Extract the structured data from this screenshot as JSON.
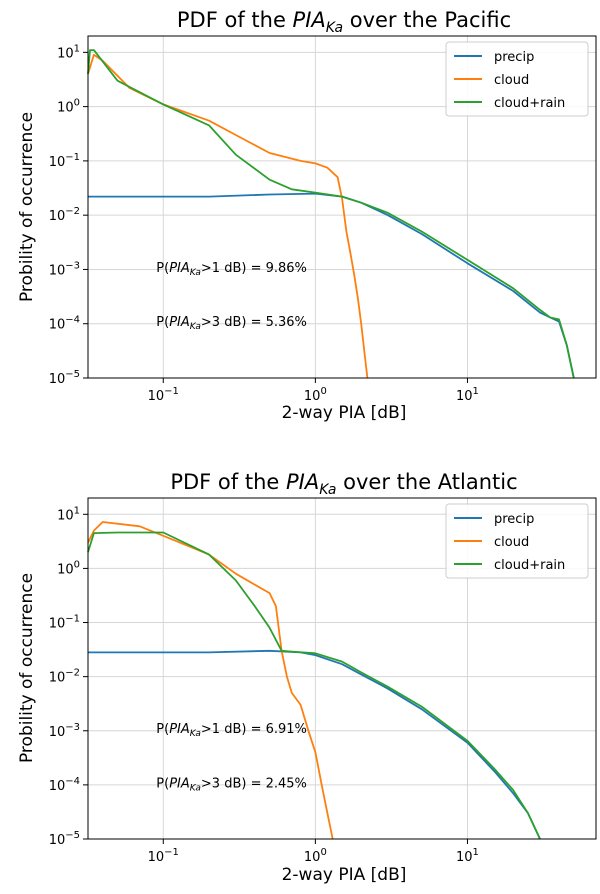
{
  "colors": {
    "precip": "#1f77b4",
    "cloud": "#ff7f0e",
    "cloud_rain": "#2ca02c",
    "grid": "#d6d6d6",
    "axes": "#000000"
  },
  "chart_data": [
    {
      "type": "line",
      "title": "PDF of the PIA_Ka over the Pacific",
      "title_parts": {
        "prefix": "PDF of the ",
        "pia": "PIA",
        "sub": "Ka",
        "suffix": " over the Pacific"
      },
      "xlabel": "2-way PIA [dB]",
      "ylabel": "Probility of occurrence",
      "xscale": "log",
      "yscale": "log",
      "xlim": [
        0.032,
        70
      ],
      "ylim": [
        1e-05,
        20
      ],
      "grid": true,
      "legend_position": "top-right",
      "xticks": [
        {
          "value": 0.1,
          "base": "10",
          "exp": "−1"
        },
        {
          "value": 1,
          "base": "10",
          "exp": "0"
        },
        {
          "value": 10,
          "base": "10",
          "exp": "1"
        }
      ],
      "yticks": [
        {
          "value": 1e-05,
          "base": "10",
          "exp": "−5"
        },
        {
          "value": 0.0001,
          "base": "10",
          "exp": "−4"
        },
        {
          "value": 0.001,
          "base": "10",
          "exp": "−3"
        },
        {
          "value": 0.01,
          "base": "10",
          "exp": "−2"
        },
        {
          "value": 0.1,
          "base": "10",
          "exp": "−1"
        },
        {
          "value": 1,
          "base": "10",
          "exp": "0"
        },
        {
          "value": 10,
          "base": "10",
          "exp": "1"
        }
      ],
      "annotations": [
        {
          "x": 0.09,
          "y": 0.0009,
          "prefix": "P(",
          "pia": "PIA",
          "sub": "Ka",
          "suffix": ">1 dB) = 9.86%"
        },
        {
          "x": 0.09,
          "y": 9e-05,
          "prefix": "P(",
          "pia": "PIA",
          "sub": "Ka",
          "suffix": ">3 dB) = 5.36%"
        }
      ],
      "series": [
        {
          "name": "precip",
          "key": "precip",
          "x": [
            0.032,
            0.05,
            0.1,
            0.2,
            0.5,
            1.0,
            1.5,
            2.0,
            3.0,
            5.0,
            10.0,
            20.0,
            30.0,
            35.0,
            40.0,
            45.0,
            50.0
          ],
          "y": [
            0.022,
            0.022,
            0.022,
            0.022,
            0.024,
            0.025,
            0.022,
            0.017,
            0.01,
            0.0045,
            0.0013,
            0.0004,
            0.00016,
            0.00013,
            0.00011,
            4e-05,
            1e-05
          ]
        },
        {
          "name": "cloud",
          "key": "cloud",
          "x": [
            0.032,
            0.035,
            0.04,
            0.06,
            0.1,
            0.2,
            0.3,
            0.5,
            0.8,
            1.0,
            1.2,
            1.4,
            1.5,
            1.6,
            1.7,
            1.8,
            1.9,
            2.0,
            2.1,
            2.2
          ],
          "y": [
            4,
            9,
            7,
            2.2,
            1.1,
            0.55,
            0.3,
            0.14,
            0.1,
            0.09,
            0.075,
            0.05,
            0.02,
            0.005,
            0.002,
            0.0008,
            0.0003,
            0.0001,
            3e-05,
            1e-05
          ]
        },
        {
          "name": "cloud+rain",
          "key": "cloud_rain",
          "x": [
            0.032,
            0.033,
            0.035,
            0.05,
            0.1,
            0.2,
            0.3,
            0.5,
            0.7,
            1.0,
            1.5,
            2.0,
            3.0,
            5.0,
            10.0,
            20.0,
            30.0,
            35.0,
            40.0,
            45.0,
            50.0
          ],
          "y": [
            4,
            11,
            11,
            3,
            1.1,
            0.45,
            0.13,
            0.045,
            0.03,
            0.026,
            0.022,
            0.017,
            0.011,
            0.005,
            0.0015,
            0.00045,
            0.00018,
            0.00013,
            0.00012,
            4e-05,
            1e-05
          ]
        }
      ]
    },
    {
      "type": "line",
      "title": "PDF of the PIA_Ka over the Atlantic",
      "title_parts": {
        "prefix": "PDF of the ",
        "pia": "PIA",
        "sub": "Ka",
        "suffix": " over the Atlantic"
      },
      "xlabel": "2-way PIA [dB]",
      "ylabel": "Probility of occurrence",
      "xscale": "log",
      "yscale": "log",
      "xlim": [
        0.032,
        70
      ],
      "ylim": [
        1e-05,
        20
      ],
      "grid": true,
      "legend_position": "top-right",
      "xticks": [
        {
          "value": 0.1,
          "base": "10",
          "exp": "−1"
        },
        {
          "value": 1,
          "base": "10",
          "exp": "0"
        },
        {
          "value": 10,
          "base": "10",
          "exp": "1"
        }
      ],
      "yticks": [
        {
          "value": 1e-05,
          "base": "10",
          "exp": "−5"
        },
        {
          "value": 0.0001,
          "base": "10",
          "exp": "−4"
        },
        {
          "value": 0.001,
          "base": "10",
          "exp": "−3"
        },
        {
          "value": 0.01,
          "base": "10",
          "exp": "−2"
        },
        {
          "value": 0.1,
          "base": "10",
          "exp": "−1"
        },
        {
          "value": 1,
          "base": "10",
          "exp": "0"
        },
        {
          "value": 10,
          "base": "10",
          "exp": "1"
        }
      ],
      "annotations": [
        {
          "x": 0.09,
          "y": 0.0009,
          "prefix": "P(",
          "pia": "PIA",
          "sub": "Ka",
          "suffix": ">1 dB) = 6.91%"
        },
        {
          "x": 0.09,
          "y": 9e-05,
          "prefix": "P(",
          "pia": "PIA",
          "sub": "Ka",
          "suffix": ">3 dB) = 2.45%"
        }
      ],
      "series": [
        {
          "name": "precip",
          "key": "precip",
          "x": [
            0.032,
            0.05,
            0.1,
            0.2,
            0.5,
            0.8,
            1.0,
            1.5,
            2.0,
            3.0,
            5.0,
            10.0,
            15.0,
            20.0,
            25.0,
            30.0
          ],
          "y": [
            0.028,
            0.028,
            0.028,
            0.028,
            0.03,
            0.028,
            0.025,
            0.017,
            0.011,
            0.006,
            0.0025,
            0.0006,
            0.00018,
            7e-05,
            3e-05,
            1e-05
          ]
        },
        {
          "name": "cloud",
          "key": "cloud",
          "x": [
            0.032,
            0.035,
            0.04,
            0.07,
            0.1,
            0.2,
            0.3,
            0.4,
            0.5,
            0.55,
            0.6,
            0.65,
            0.7,
            0.8,
            0.9,
            1.0,
            1.1,
            1.2,
            1.3
          ],
          "y": [
            3,
            5,
            7.2,
            6,
            4,
            1.8,
            0.8,
            0.5,
            0.35,
            0.2,
            0.03,
            0.01,
            0.005,
            0.003,
            0.001,
            0.0004,
            0.0001,
            3e-05,
            1e-05
          ]
        },
        {
          "name": "cloud+rain",
          "key": "cloud_rain",
          "x": [
            0.032,
            0.035,
            0.05,
            0.1,
            0.2,
            0.3,
            0.4,
            0.5,
            0.6,
            0.7,
            1.0,
            1.5,
            2.0,
            3.0,
            5.0,
            10.0,
            15.0,
            20.0,
            25.0,
            30.0
          ],
          "y": [
            2,
            4.5,
            4.6,
            4.6,
            1.8,
            0.6,
            0.2,
            0.08,
            0.03,
            0.029,
            0.027,
            0.019,
            0.012,
            0.0065,
            0.0028,
            0.00065,
            0.0002,
            8e-05,
            3e-05,
            1e-05
          ]
        }
      ]
    }
  ]
}
